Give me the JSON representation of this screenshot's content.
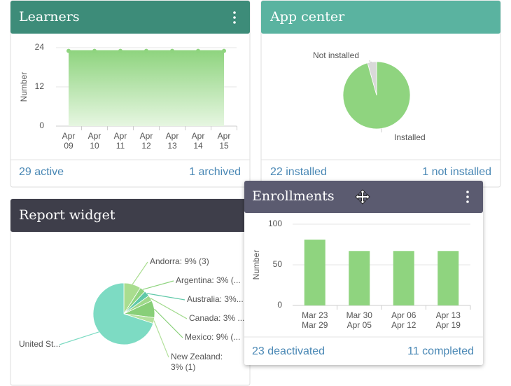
{
  "chart_data": [
    {
      "type": "area",
      "title": "Learners",
      "y_label": "Number",
      "categories": [
        [
          "Apr",
          "09"
        ],
        [
          "Apr",
          "10"
        ],
        [
          "Apr",
          "11"
        ],
        [
          "Apr",
          "12"
        ],
        [
          "Apr",
          "13"
        ],
        [
          "Apr",
          "14"
        ],
        [
          "Apr",
          "15"
        ]
      ],
      "values": [
        23,
        23,
        23,
        23,
        23,
        23,
        23
      ],
      "color": "#8fd47f",
      "ylim": [
        0,
        24
      ],
      "yticks": [
        0,
        12,
        24
      ],
      "grid": true,
      "footer": [
        "29 active",
        "1 archived"
      ]
    },
    {
      "type": "pie",
      "title": "App center",
      "labels": [
        "Installed",
        "Not installed"
      ],
      "values": [
        22,
        1
      ],
      "colors": [
        "#8fd47f",
        "#d9d9d9"
      ],
      "footer": [
        "22 installed",
        "1 not installed"
      ]
    },
    {
      "type": "pie",
      "title": "Report widget",
      "labels": [
        "Andorra: 9% (3)",
        "Argentina: 3% (...",
        "Australia: 3%...",
        "Canada: 3% ...",
        "Mexico: 9% (...",
        "New Zealand: 3% (1)",
        "United St..."
      ],
      "values": [
        9,
        3,
        3,
        3,
        9,
        3,
        70
      ],
      "colors": [
        "#a9dd8f",
        "#8fd47f",
        "#5fc9a8",
        "#9fd98a",
        "#88cf78",
        "#b3e19c",
        "#7ddbc3"
      ]
    },
    {
      "type": "bar",
      "title": "Enrollments",
      "y_label": "Number",
      "categories": [
        [
          "Mar 23",
          "Mar 29"
        ],
        [
          "Mar 30",
          "Apr 05"
        ],
        [
          "Apr 06",
          "Apr 12"
        ],
        [
          "Apr 13",
          "Apr 19"
        ]
      ],
      "values": [
        81,
        67,
        67,
        67
      ],
      "color": "#8fd47f",
      "ylim": [
        0,
        100
      ],
      "yticks": [
        0,
        50,
        100
      ],
      "grid": true,
      "footer": [
        "23 deactivated",
        "11 completed"
      ]
    }
  ]
}
